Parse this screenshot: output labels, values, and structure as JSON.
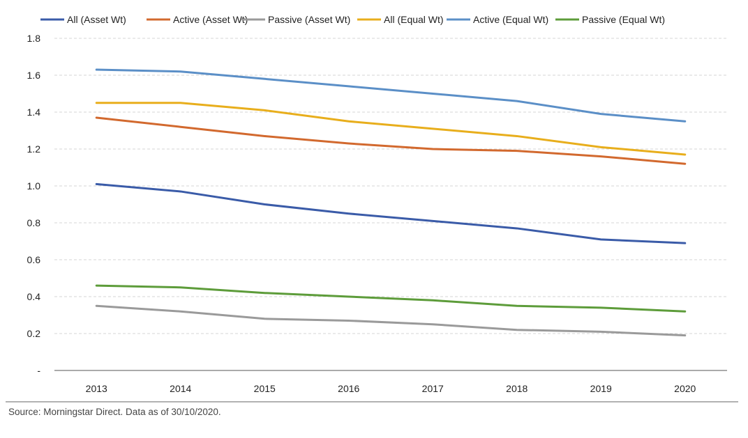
{
  "chart_data": {
    "type": "line",
    "title": "",
    "xlabel": "",
    "ylabel": "",
    "ylim": [
      0,
      1.8
    ],
    "y_ticks": [
      "-",
      "0.2",
      "0.4",
      "0.6",
      "0.8",
      "1.0",
      "1.2",
      "1.4",
      "1.6",
      "1.8"
    ],
    "y_tick_values": [
      0,
      0.2,
      0.4,
      0.6,
      0.8,
      1.0,
      1.2,
      1.4,
      1.6,
      1.8
    ],
    "categories": [
      "2013",
      "2014",
      "2015",
      "2016",
      "2017",
      "2018",
      "2019",
      "2020"
    ],
    "grid": "horizontal dashed",
    "legend_position": "top",
    "series": [
      {
        "name": "All (Asset Wt)",
        "color": "#3A5BA8",
        "values": [
          1.01,
          0.97,
          0.9,
          0.85,
          0.81,
          0.77,
          0.71,
          0.69
        ]
      },
      {
        "name": "Active (Asset Wt)",
        "color": "#D2692E",
        "values": [
          1.37,
          1.32,
          1.27,
          1.23,
          1.2,
          1.19,
          1.16,
          1.12
        ]
      },
      {
        "name": "Passive (Asset Wt)",
        "color": "#9A9A9A",
        "values": [
          0.35,
          0.32,
          0.28,
          0.27,
          0.25,
          0.22,
          0.21,
          0.19
        ]
      },
      {
        "name": "All (Equal Wt)",
        "color": "#E8AE1C",
        "values": [
          1.45,
          1.45,
          1.41,
          1.35,
          1.31,
          1.27,
          1.21,
          1.17
        ]
      },
      {
        "name": "Active (Equal Wt)",
        "color": "#5B8FC7",
        "values": [
          1.63,
          1.62,
          1.58,
          1.54,
          1.5,
          1.46,
          1.39,
          1.35
        ]
      },
      {
        "name": "Passive (Equal Wt)",
        "color": "#5D9C3A",
        "values": [
          0.46,
          0.45,
          0.42,
          0.4,
          0.38,
          0.35,
          0.34,
          0.32
        ]
      }
    ]
  },
  "source": "Source: Morningstar Direct. Data as of 30/10/2020."
}
